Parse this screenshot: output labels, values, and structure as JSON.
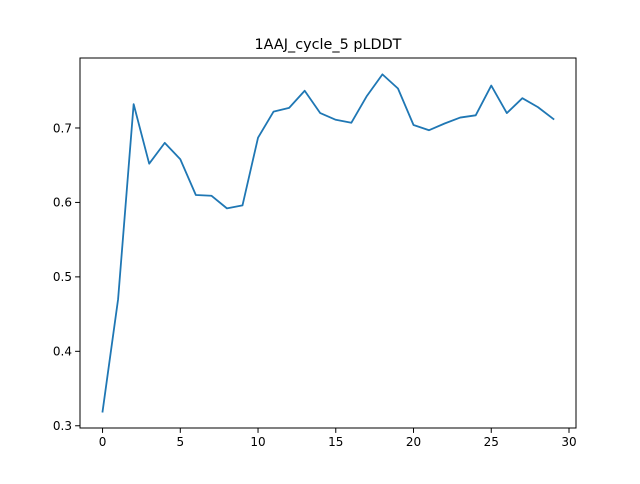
{
  "chart_data": {
    "type": "line",
    "title": "1AAJ_cycle_5 pLDDT",
    "xlabel": "",
    "ylabel": "",
    "xlim": [
      -1.45,
      30.45
    ],
    "ylim": [
      0.297,
      0.794
    ],
    "x_ticks": [
      0,
      5,
      10,
      15,
      20,
      25,
      30
    ],
    "x_tick_labels": [
      "0",
      "5",
      "10",
      "15",
      "20",
      "25",
      "30"
    ],
    "y_ticks": [
      0.3,
      0.4,
      0.5,
      0.6,
      0.7
    ],
    "y_tick_labels": [
      "0.3",
      "0.4",
      "0.5",
      "0.6",
      "0.7"
    ],
    "grid": false,
    "series": [
      {
        "color": "#1f77b4",
        "x": [
          0,
          1,
          2,
          3,
          4,
          5,
          6,
          7,
          8,
          9,
          10,
          11,
          12,
          13,
          14,
          15,
          16,
          17,
          18,
          19,
          20,
          21,
          22,
          23,
          24,
          25,
          26,
          27,
          28,
          29
        ],
        "values": [
          0.319,
          0.47,
          0.732,
          0.652,
          0.68,
          0.658,
          0.61,
          0.609,
          0.592,
          0.596,
          0.687,
          0.722,
          0.727,
          0.75,
          0.72,
          0.711,
          0.707,
          0.743,
          0.772,
          0.753,
          0.704,
          0.697,
          0.706,
          0.714,
          0.717,
          0.757,
          0.72,
          0.74,
          0.728,
          0.712
        ]
      }
    ]
  }
}
